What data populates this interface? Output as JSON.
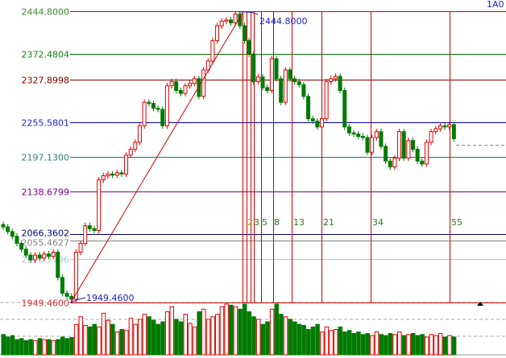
{
  "corner_label": "1A0",
  "colors": {
    "up": "#e00000",
    "down": "#007a00",
    "diag": "#d00000",
    "vline": "#cc0000"
  },
  "chart_data": {
    "type": "candlestick",
    "ylim": [
      1949.46,
      2444.8
    ],
    "fib_levels": [
      {
        "label": "2444.8000",
        "value": 2444.8,
        "color": "#d00000",
        "text_color": "#3a8a2a"
      },
      {
        "label": "2372.4804",
        "value": 2372.4804,
        "color": "#007000",
        "text_color": "#1f7a1f"
      },
      {
        "label": "2327.8998",
        "value": 2327.8998,
        "color": "#800000",
        "text_color": "#800000"
      },
      {
        "label": "2255.5801",
        "value": 2255.5801,
        "color": "#0000b0",
        "text_color": "#2020e0"
      },
      {
        "label": "2197.1300",
        "value": 2197.13,
        "color": "#008080",
        "text_color": "#308080"
      },
      {
        "label": "2138.6799",
        "value": 2138.6799,
        "color": "#800080",
        "text_color": "#800080"
      },
      {
        "label": "2066.3602",
        "value": 2066.3602,
        "color": "#000060",
        "text_color": "#000080"
      },
      {
        "label": "2055.4627",
        "value": 2055.4627,
        "color": "#808080",
        "text_color": "#808080"
      },
      {
        "label": "2023.7796",
        "value": 2023.7796,
        "color": "#a8cce0",
        "text_color": "#a8cce0"
      },
      {
        "label": "1949.4600",
        "value": 1949.46,
        "color": "#d00000",
        "text_color": "#e03030"
      }
    ],
    "low_annotation": "1949.4600",
    "high_annotation": "2444.8000",
    "fib_time_labels": [
      "2",
      "3",
      "5",
      "8",
      "13",
      "21",
      "34",
      "55"
    ],
    "closes": [
      2078,
      2070,
      2062,
      2050,
      2040,
      2030,
      2022,
      2030,
      2025,
      2032,
      2028,
      2035,
      1992,
      1965,
      1960,
      1955,
      2035,
      2050,
      2080,
      2075,
      2072,
      2158,
      2165,
      2168,
      2166,
      2170,
      2168,
      2200,
      2210,
      2222,
      2250,
      2290,
      2288,
      2280,
      2278,
      2250,
      2318,
      2325,
      2310,
      2305,
      2318,
      2322,
      2330,
      2300,
      2345,
      2360,
      2395,
      2420,
      2428,
      2430,
      2425,
      2440,
      2420,
      2395,
      2372,
      2325,
      2333,
      2315,
      2310,
      2364,
      2330,
      2290,
      2345,
      2330,
      2325,
      2320,
      2300,
      2262,
      2258,
      2248,
      2262,
      2325,
      2330,
      2334,
      2310,
      2248,
      2238,
      2236,
      2232,
      2230,
      2205,
      2230,
      2240,
      2215,
      2190,
      2180,
      2195,
      2240,
      2195,
      2225,
      2210,
      2190,
      2185,
      2222,
      2240,
      2245,
      2250,
      2248,
      2252,
      2228
    ],
    "volumes": [
      40,
      35,
      38,
      30,
      32,
      28,
      30,
      28,
      32,
      30,
      30,
      28,
      30,
      35,
      32,
      34,
      60,
      75,
      58,
      55,
      60,
      55,
      82,
      68,
      60,
      45,
      50,
      48,
      72,
      60,
      70,
      80,
      75,
      68,
      60,
      65,
      85,
      95,
      70,
      65,
      80,
      62,
      55,
      85,
      90,
      70,
      75,
      80,
      95,
      100,
      98,
      95,
      90,
      100,
      85,
      75,
      70,
      60,
      65,
      90,
      100,
      80,
      75,
      70,
      65,
      60,
      58,
      50,
      55,
      60,
      45,
      55,
      48,
      50,
      55,
      45,
      48,
      42,
      45,
      40,
      42,
      38,
      45,
      40,
      38,
      42,
      40,
      45,
      38,
      40,
      42,
      38,
      40,
      35,
      40,
      38,
      42,
      35,
      38,
      35
    ]
  }
}
